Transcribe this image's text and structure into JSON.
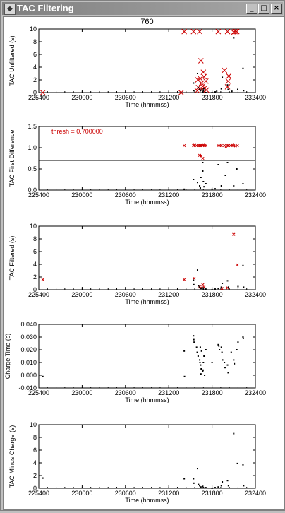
{
  "window": {
    "title": "TAC Filtering",
    "app_icon": "idl-app-icon",
    "controls": {
      "minimize": "_",
      "maximize": "□",
      "close": "×"
    }
  },
  "figure_title": "760",
  "chart_data": [
    {
      "type": "scatter",
      "title": "760",
      "xlabel": "Time (hhmmss)",
      "ylabel": "TAC Unfiltered (s)",
      "xlim": [
        225400,
        232400
      ],
      "ylim": [
        0,
        10
      ],
      "xticks": [
        "225400",
        "230000",
        "230600",
        "231200",
        "231800",
        "232400"
      ],
      "yticks": [
        "0",
        "2",
        "4",
        "6",
        "8",
        "10"
      ],
      "series": [
        {
          "marker": "x",
          "color": "#cc0000",
          "x": [
            225530,
            230000,
            230100,
            230400,
            230600,
            230620,
            230640,
            230540,
            230720,
            230740,
            230800,
            230660,
            230700,
            230560,
            230680,
            230760,
            230820,
            230520,
            231200,
            231400,
            231500,
            231540,
            231500,
            231700,
            231740,
            231800,
            231520
          ],
          "y": [
            0.0,
            0.0,
            9.6,
            9.6,
            9.6,
            2.2,
            5.0,
            2.0,
            3.2,
            2.5,
            1.8,
            1.5,
            1.0,
            0.8,
            0.5,
            0.7,
            0.4,
            0.3,
            9.6,
            3.5,
            9.6,
            2.6,
            0.9,
            9.5,
            9.6,
            9.6,
            1.8
          ]
        },
        {
          "marker": "dot",
          "color": "#000000",
          "x": [
            230400,
            230410,
            230530,
            230550,
            230600,
            230620,
            230650,
            230700,
            230720,
            230730,
            230800,
            231000,
            231100,
            231150,
            231300,
            231330,
            231500,
            231520,
            231700,
            231830,
            232000,
            232020,
            231640
          ],
          "y": [
            1.5,
            0.3,
            3.0,
            0.8,
            0.5,
            0.3,
            0.4,
            0.1,
            0.3,
            0.6,
            0.0,
            0.0,
            0.1,
            0.2,
            0.6,
            2.4,
            1.2,
            0.5,
            8.6,
            0.5,
            3.8,
            0.3,
            0.2
          ]
        }
      ]
    },
    {
      "type": "scatter",
      "xlabel": "Time (hhmmss)",
      "ylabel": "TAC First Difference",
      "xlim": [
        225400,
        232400
      ],
      "ylim": [
        0.0,
        1.5
      ],
      "xticks": [
        "225400",
        "230000",
        "230600",
        "231200",
        "231800",
        "232400"
      ],
      "yticks": [
        "0.0",
        "0.5",
        "1.0",
        "1.5"
      ],
      "threshold": 0.7,
      "annotation": "thresh = 0.700000",
      "series": [
        {
          "marker": "x",
          "color": "#cc0000",
          "x": [
            230100,
            230400,
            230430,
            230500,
            230550,
            230600,
            230620,
            230650,
            230700,
            230720,
            230760,
            230800,
            230600,
            230650,
            230700,
            231200,
            231250,
            231300,
            231400,
            231450,
            231500,
            231530,
            231600,
            231650,
            231700,
            231750,
            231820
          ],
          "y": [
            1.05,
            1.05,
            1.06,
            1.05,
            1.05,
            1.05,
            1.05,
            1.05,
            1.05,
            1.06,
            1.05,
            1.05,
            0.82,
            0.8,
            0.75,
            1.05,
            1.05,
            1.05,
            1.05,
            1.02,
            1.05,
            1.05,
            1.05,
            1.06,
            1.05,
            1.04,
            1.05
          ]
        },
        {
          "marker": "dot",
          "color": "#000000",
          "x": [
            230400,
            230530,
            230600,
            230620,
            230640,
            230700,
            230720,
            230740,
            230800,
            231000,
            231100,
            231200,
            231300,
            231430,
            231500,
            231700,
            231800,
            232000,
            230100,
            230700
          ],
          "y": [
            0.25,
            0.18,
            0.1,
            0.05,
            0.3,
            0.45,
            0.2,
            0.08,
            0.15,
            0.02,
            0.03,
            0.6,
            0.1,
            0.35,
            0.65,
            0.1,
            0.5,
            0.15,
            0.02,
            0.65
          ]
        }
      ]
    },
    {
      "type": "scatter",
      "xlabel": "Time (hhmmss)",
      "ylabel": "TAC Filtered (s)",
      "xlim": [
        225400,
        232400
      ],
      "ylim": [
        0,
        10
      ],
      "xticks": [
        "225400",
        "230000",
        "230600",
        "231200",
        "231800",
        "232400"
      ],
      "yticks": [
        "0",
        "2",
        "4",
        "6",
        "8",
        "10"
      ],
      "series": [
        {
          "marker": "x",
          "color": "#cc0000",
          "x": [
            225530,
            230100,
            230420,
            230600,
            230640,
            230700,
            230740,
            231320,
            231500,
            231700,
            231820
          ],
          "y": [
            1.6,
            1.6,
            1.8,
            0.5,
            0.3,
            0.8,
            0.4,
            0.2,
            0.3,
            8.7,
            3.9
          ]
        },
        {
          "marker": "dot",
          "color": "#000000",
          "x": [
            230400,
            230410,
            230530,
            230560,
            230600,
            230640,
            230700,
            230720,
            230800,
            231000,
            231100,
            231200,
            231300,
            231330,
            231500,
            231530,
            231840,
            232000,
            232020
          ],
          "y": [
            1.5,
            0.8,
            3.1,
            0.6,
            0.4,
            0.2,
            0.3,
            0.1,
            0.1,
            0.0,
            0.1,
            0.2,
            0.4,
            1.0,
            1.4,
            0.4,
            0.5,
            3.8,
            0.4
          ]
        }
      ]
    },
    {
      "type": "scatter",
      "xlabel": "Time (hhmmss)",
      "ylabel": "Charge Time (s)",
      "xlim": [
        225400,
        232400
      ],
      "ylim": [
        -0.01,
        0.04
      ],
      "xticks": [
        "225400",
        "230000",
        "230600",
        "231200",
        "231800",
        "232400"
      ],
      "yticks": [
        "-0.010",
        "0.000",
        "0.010",
        "0.020",
        "0.030",
        "0.040"
      ],
      "series": [
        {
          "marker": "dot",
          "color": "#000000",
          "x": [
            225530,
            230100,
            230110,
            230400,
            230410,
            230420,
            230500,
            230520,
            230550,
            230600,
            230610,
            230630,
            230650,
            230700,
            230720,
            230740,
            230800,
            230620,
            230660,
            230710,
            231000,
            231200,
            231220,
            231240,
            231300,
            231320,
            231340,
            231400,
            231420,
            231500,
            231520,
            231620,
            231700,
            231720,
            231800,
            231840,
            232000,
            232010,
            230640,
            230760
          ],
          "y": [
            -0.001,
            0.019,
            -0.001,
            0.031,
            0.028,
            0.026,
            0.022,
            0.018,
            0.015,
            0.012,
            0.01,
            0.008,
            0.005,
            0.003,
            0.01,
            0.015,
            0.02,
            0.022,
            0.019,
            0.004,
            0.01,
            0.024,
            0.023,
            0.02,
            0.022,
            0.018,
            0.012,
            0.01,
            0.006,
            0.008,
            0.002,
            0.018,
            0.012,
            0.009,
            0.02,
            0.026,
            0.03,
            0.029,
            0.001,
            0.0
          ]
        }
      ]
    },
    {
      "type": "scatter",
      "xlabel": "Time (hhmmss)",
      "ylabel": "TAC Minus Charge (s)",
      "xlim": [
        225400,
        232400
      ],
      "ylim": [
        0,
        10
      ],
      "xticks": [
        "225400",
        "230000",
        "230600",
        "231200",
        "231800",
        "232400"
      ],
      "yticks": [
        "0",
        "2",
        "4",
        "6",
        "8",
        "10"
      ],
      "series": [
        {
          "marker": "dot",
          "color": "#000000",
          "x": [
            225530,
            230100,
            230400,
            230410,
            230530,
            230560,
            230600,
            230640,
            230700,
            230720,
            230800,
            231000,
            231100,
            231200,
            231300,
            231330,
            231500,
            231530,
            231700,
            231820,
            232000,
            232020
          ],
          "y": [
            1.6,
            1.5,
            1.5,
            0.8,
            3.1,
            0.6,
            0.4,
            0.2,
            0.3,
            0.1,
            0.1,
            0.0,
            0.1,
            0.2,
            0.4,
            1.0,
            1.2,
            0.4,
            8.6,
            3.9,
            3.7,
            0.4
          ]
        }
      ]
    }
  ]
}
